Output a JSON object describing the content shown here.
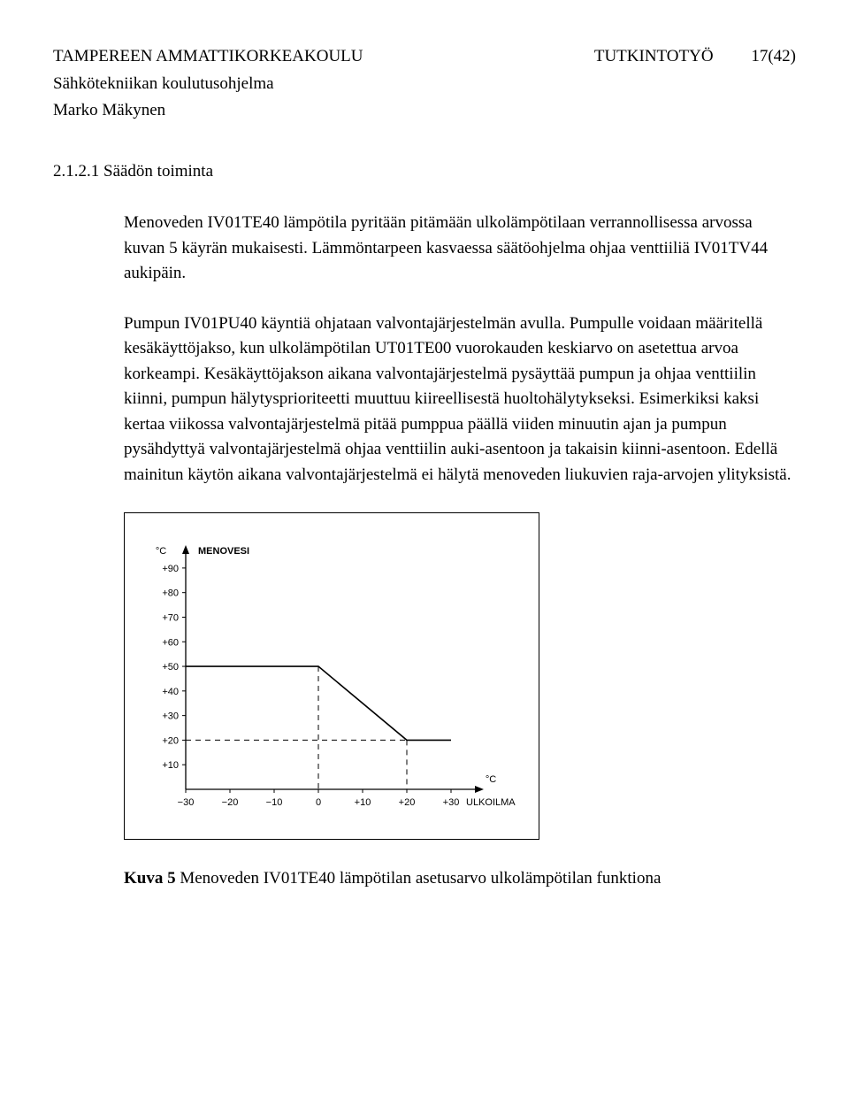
{
  "header": {
    "institution": "TAMPEREEN AMMATTIKORKEAKOULU",
    "program": "Sähkötekniikan koulutusohjelma",
    "author": "Marko Mäkynen",
    "doctype": "TUTKINTOTYÖ",
    "page": "17(42)"
  },
  "section": {
    "number": "2.1.2.1",
    "title": "Säädön toiminta"
  },
  "paragraphs": {
    "p1": "Menoveden IV01TE40 lämpötila pyritään pitämään ulkolämpötilaan verrannollisessa arvossa kuvan 5 käyrän mukaisesti. Lämmöntarpeen kasvaessa säätöohjelma ohjaa venttiiliä IV01TV44 aukipäin.",
    "p2": "Pumpun IV01PU40 käyntiä ohjataan valvontajärjestelmän avulla. Pumpulle voidaan määritellä kesäkäyttöjakso, kun ulkolämpötilan UT01TE00 vuorokauden keskiarvo on asetettua arvoa korkeampi. Kesäkäyttöjakson aikana valvontajärjestelmä pysäyttää pumpun ja ohjaa venttiilin kiinni, pumpun hälytysprioriteetti muuttuu kiireellisestä huoltohälytykseksi. Esimerkiksi kaksi kertaa viikossa valvontajärjestelmä pitää pumppua päällä viiden minuutin ajan ja pumpun pysähdyttyä valvontajärjestelmä ohjaa venttiilin auki-asentoon ja takaisin kiinni-asentoon. Edellä mainitun käytön aikana valvontajärjestelmä ei hälytä menoveden liukuvien raja-arvojen ylityksistä."
  },
  "chart": {
    "y_unit": "°C",
    "y_title": "MENOVESI",
    "x_unit": "°C",
    "x_title": "ULKOILMA",
    "y_ticks": [
      "+90",
      "+80",
      "+70",
      "+60",
      "+50",
      "+40",
      "+30",
      "+20",
      "+10"
    ],
    "x_ticks": [
      "−30",
      "−20",
      "−10",
      "0",
      "+10",
      "+20",
      "+30"
    ],
    "curve_points": [
      {
        "x": -30,
        "y": 50
      },
      {
        "x": 0,
        "y": 50
      },
      {
        "x": 20,
        "y": 20
      },
      {
        "x": 30,
        "y": 20
      }
    ],
    "ref_dash_h1": 50,
    "ref_dash_v1": 0,
    "ref_dash_h2": 20,
    "ref_dash_v2": 20,
    "xlim": [
      -30,
      35
    ],
    "ylim": [
      0,
      95
    ],
    "axis_color": "#000000",
    "line_width": 1.3,
    "dash_pattern": "6,5",
    "font_size_ticks": 11,
    "font_size_labels": 11,
    "font_family": "Arial, Helvetica, sans-serif",
    "arrow_size": 8
  },
  "caption": {
    "label": "Kuva 5",
    "text": " Menoveden IV01TE40 lämpötilan asetusarvo ulkolämpötilan funktiona"
  }
}
